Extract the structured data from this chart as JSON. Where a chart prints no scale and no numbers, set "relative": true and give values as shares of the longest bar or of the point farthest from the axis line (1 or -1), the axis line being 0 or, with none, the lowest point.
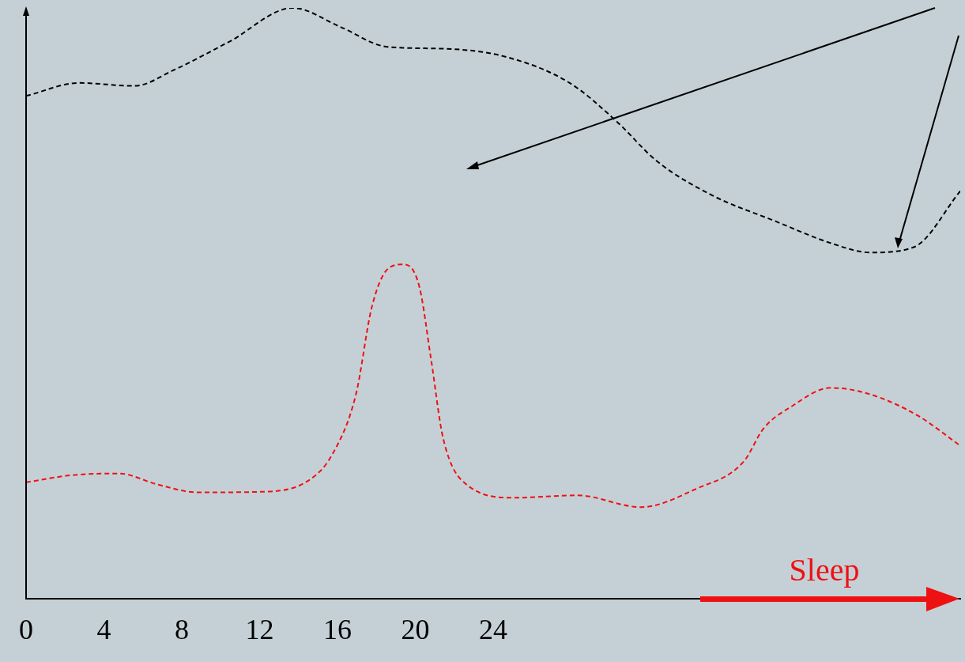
{
  "chart_data": {
    "type": "line",
    "relative": true,
    "line_style": "dashed",
    "marker": "none",
    "xlim": [
      0,
      48
    ],
    "xticks": [
      0,
      4,
      8,
      12,
      16,
      20,
      24
    ],
    "annotations": [
      "Sleep"
    ],
    "series": [
      {
        "color": "#000000",
        "x": [
          0,
          2.72,
          5.57,
          7.6,
          10.45,
          13.7,
          16.14,
          18.58,
          21.42,
          24.67,
          27.93,
          30.37,
          32.4,
          35.24,
          38.5,
          41.34,
          43.37,
          45.61,
          48
        ],
        "values": [
          0.851,
          0.873,
          0.868,
          0.895,
          0.943,
          1,
          0.968,
          0.934,
          0.931,
          0.917,
          0.873,
          0.807,
          0.741,
          0.683,
          0.639,
          0.602,
          0.586,
          0.595,
          0.69
        ]
      },
      {
        "color": "#ee1111",
        "x": [
          0,
          2.32,
          4.76,
          6.79,
          8.82,
          12.07,
          14.51,
          15.73,
          16.95,
          17.76,
          18.58,
          19.39,
          20.2,
          20.81,
          21.42,
          22.64,
          25.08,
          28.33,
          31.59,
          34.43,
          36.87,
          37.89,
          39.31,
          41.34,
          43.37,
          45.81,
          48
        ],
        "values": [
          0.197,
          0.209,
          0.212,
          0.193,
          0.18,
          0.181,
          0.2,
          0.244,
          0.346,
          0.493,
          0.558,
          0.566,
          0.529,
          0.405,
          0.273,
          0.193,
          0.171,
          0.175,
          0.155,
          0.186,
          0.232,
          0.288,
          0.325,
          0.357,
          0.346,
          0.31,
          0.259
        ]
      }
    ]
  }
}
